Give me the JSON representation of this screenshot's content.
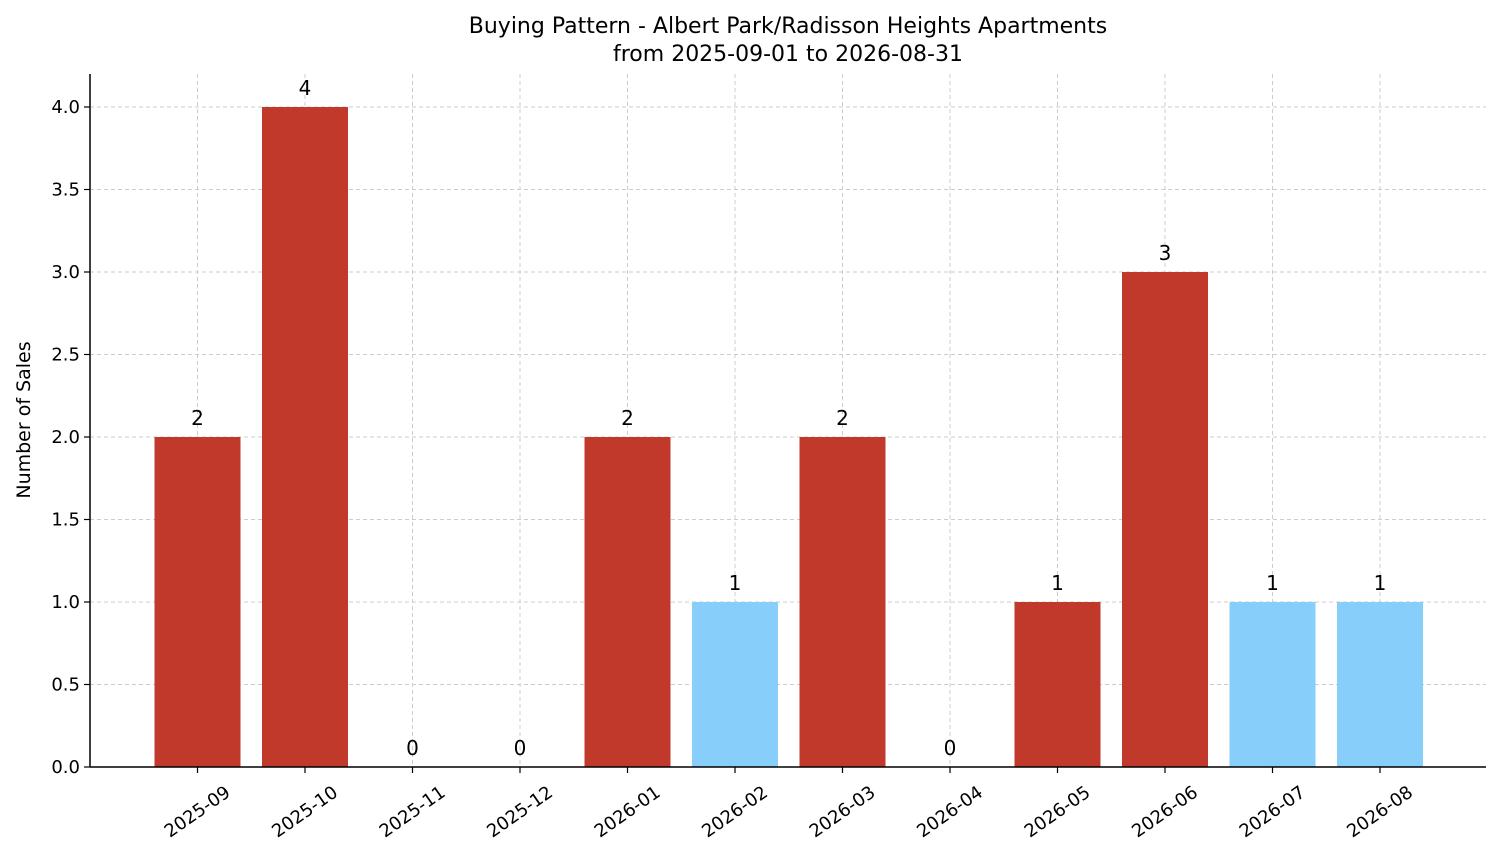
{
  "chart_data": {
    "type": "bar",
    "title": "Buying Pattern - Albert Park/Radisson Heights Apartments",
    "subtitle": "from 2025-09-01 to 2026-08-31",
    "xlabel": "",
    "ylabel": "Number of Sales",
    "categories": [
      "2025-09",
      "2025-10",
      "2025-11",
      "2025-12",
      "2026-01",
      "2026-02",
      "2026-03",
      "2026-04",
      "2026-05",
      "2026-06",
      "2026-07",
      "2026-08"
    ],
    "values": [
      2,
      4,
      0,
      0,
      2,
      1,
      2,
      0,
      1,
      3,
      1,
      1
    ],
    "bar_colors": [
      "#c0392b",
      "#c0392b",
      "#c0392b",
      "#c0392b",
      "#c0392b",
      "#87cefa",
      "#c0392b",
      "#c0392b",
      "#c0392b",
      "#c0392b",
      "#87cefa",
      "#87cefa"
    ],
    "ylim": [
      0,
      4.2
    ],
    "yticks": [
      "0.0",
      "0.5",
      "1.0",
      "1.5",
      "2.0",
      "2.5",
      "3.0",
      "3.5",
      "4.0"
    ],
    "grid": true,
    "legend": "none"
  }
}
